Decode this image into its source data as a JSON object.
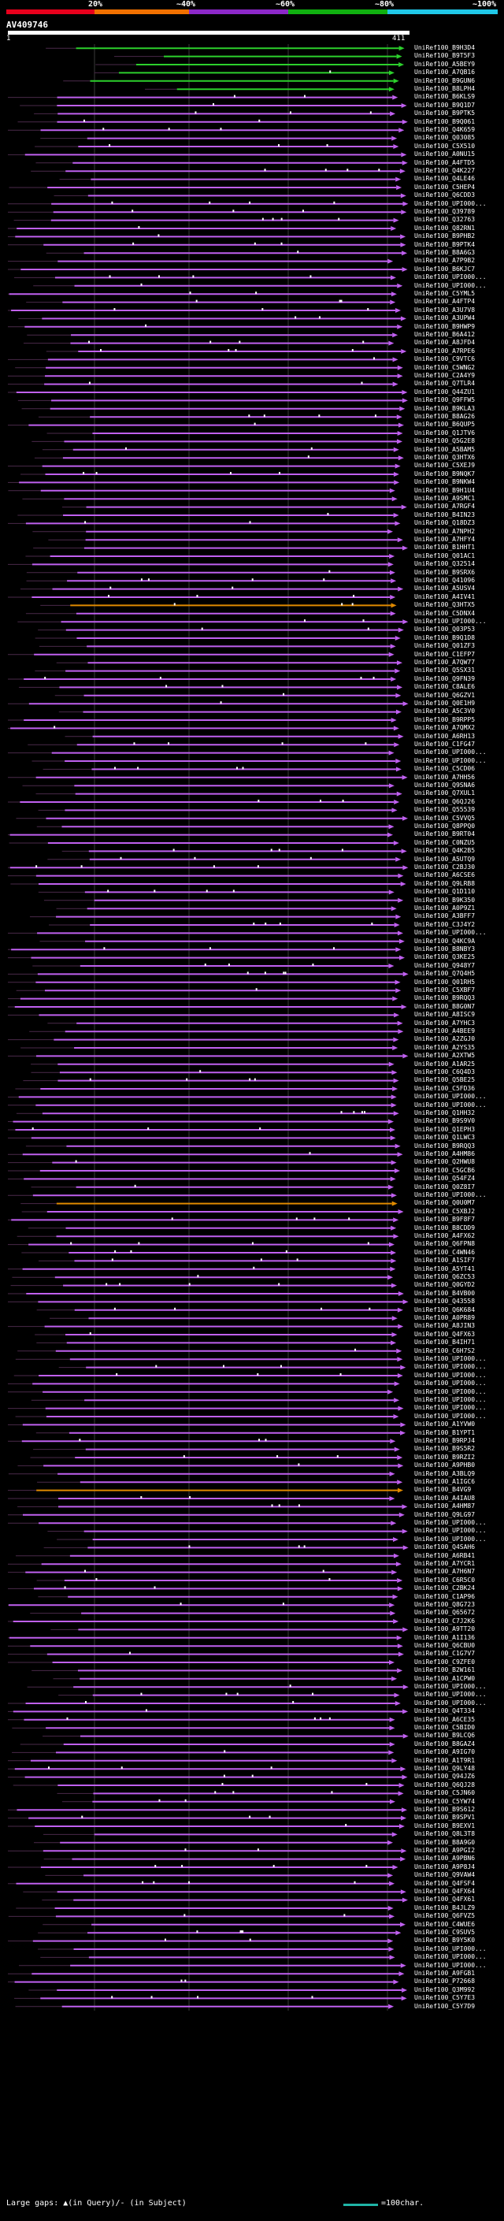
{
  "scale": {
    "labels": [
      "20%",
      "~40%",
      "~60%",
      "~80%",
      "~100%"
    ],
    "colors": [
      "#e8001c",
      "#f07000",
      "#8c28c8",
      "#10b010",
      "#20c8e8"
    ]
  },
  "query": {
    "name": "AV409746",
    "start_tick": "1",
    "end_tick": "411"
  },
  "hit_colors": {
    "low": "#c060f0",
    "mid": "#e08a00",
    "high": "#2cd02c",
    "gap": "#ffffff"
  },
  "hits": [
    {
      "label": "UniRef100_B9H3D4",
      "color": "high"
    },
    {
      "label": "UniRef100_B9T5F3",
      "color": "high"
    },
    {
      "label": "UniRef100_A5BEY9",
      "color": "high"
    },
    {
      "label": "UniRef100_A7QB16",
      "color": "high"
    },
    {
      "label": "UniRef100_B9GUN6",
      "color": "high"
    },
    {
      "label": "UniRef100_B8LPH4",
      "color": "high"
    },
    {
      "label": "UniRef100_B6KLS9",
      "color": "low"
    },
    {
      "label": "UniRef100_B9Q1D7",
      "color": "low"
    },
    {
      "label": "UniRef100_B9PTK5",
      "color": "low"
    },
    {
      "label": "UniRef100_B9Q061",
      "color": "low"
    },
    {
      "label": "UniRef100_Q4K659",
      "color": "low"
    },
    {
      "label": "UniRef100_Q03085",
      "color": "low"
    },
    {
      "label": "UniRef100_C5X510",
      "color": "low"
    },
    {
      "label": "UniRef100_A0NU15",
      "color": "low"
    },
    {
      "label": "UniRef100_A4FTD5",
      "color": "low"
    },
    {
      "label": "UniRef100_Q4K227",
      "color": "low"
    },
    {
      "label": "UniRef100_Q4LE46",
      "color": "low"
    },
    {
      "label": "UniRef100_C5HEP4",
      "color": "low"
    },
    {
      "label": "UniRef100_Q6CDD3",
      "color": "low"
    },
    {
      "label": "UniRef100_UPI000...",
      "color": "low"
    },
    {
      "label": "UniRef100_Q39789",
      "color": "low"
    },
    {
      "label": "UniRef100_Q32763",
      "color": "low"
    },
    {
      "label": "UniRef100_Q82RN1",
      "color": "low"
    },
    {
      "label": "UniRef100_B9PHB2",
      "color": "low"
    },
    {
      "label": "UniRef100_B9PTK4",
      "color": "low"
    },
    {
      "label": "UniRef100_B8A6G3",
      "color": "low"
    },
    {
      "label": "UniRef100_A7P9B2",
      "color": "low"
    },
    {
      "label": "UniRef100_B6KJC7",
      "color": "low"
    },
    {
      "label": "UniRef100_UPI000...",
      "color": "low"
    },
    {
      "label": "UniRef100_UPI000...",
      "color": "low"
    },
    {
      "label": "UniRef100_C5YML5",
      "color": "low"
    },
    {
      "label": "UniRef100_A4FTP4",
      "color": "low"
    },
    {
      "label": "UniRef100_A3U7V8",
      "color": "low"
    },
    {
      "label": "UniRef100_A3UPW4",
      "color": "low"
    },
    {
      "label": "UniRef100_B9HWP9",
      "color": "low"
    },
    {
      "label": "UniRef100_B6A412",
      "color": "low"
    },
    {
      "label": "UniRef100_A8JFD4",
      "color": "low"
    },
    {
      "label": "UniRef100_A7RPE6",
      "color": "low"
    },
    {
      "label": "UniRef100_C9VTC6",
      "color": "low"
    },
    {
      "label": "UniRef100_C5WNG2",
      "color": "low"
    },
    {
      "label": "UniRef100_C2A4Y9",
      "color": "low"
    },
    {
      "label": "UniRef100_Q7TLR4",
      "color": "low"
    },
    {
      "label": "UniRef100_Q44ZU1",
      "color": "low"
    },
    {
      "label": "UniRef100_Q9FFW5",
      "color": "low"
    },
    {
      "label": "UniRef100_B9KLA3",
      "color": "low"
    },
    {
      "label": "UniRef100_B8AG26",
      "color": "low"
    },
    {
      "label": "UniRef100_B6QUP5",
      "color": "low"
    },
    {
      "label": "UniRef100_Q1JTV6",
      "color": "low"
    },
    {
      "label": "UniRef100_Q5G2E8",
      "color": "low"
    },
    {
      "label": "UniRef100_A5BAM5",
      "color": "low"
    },
    {
      "label": "UniRef100_Q3HTX6",
      "color": "low"
    },
    {
      "label": "UniRef100_C5XEJ9",
      "color": "low"
    },
    {
      "label": "UniRef100_B9NQK7",
      "color": "low"
    },
    {
      "label": "UniRef100_B9NKW4",
      "color": "low"
    },
    {
      "label": "UniRef100_B9H1U4",
      "color": "low"
    },
    {
      "label": "UniRef100_A9SMC1",
      "color": "low"
    },
    {
      "label": "UniRef100_A7RGF4",
      "color": "low"
    },
    {
      "label": "UniRef100_B4IN23",
      "color": "low"
    },
    {
      "label": "UniRef100_Q18DZ3",
      "color": "low"
    },
    {
      "label": "UniRef100_A7NPH2",
      "color": "low"
    },
    {
      "label": "UniRef100_A7HFY4",
      "color": "low"
    },
    {
      "label": "UniRef100_B1HHT1",
      "color": "low"
    },
    {
      "label": "UniRef100_Q01AC1",
      "color": "low"
    },
    {
      "label": "UniRef100_Q32514",
      "color": "low"
    },
    {
      "label": "UniRef100_B9SRX6",
      "color": "low"
    },
    {
      "label": "UniRef100_Q41096",
      "color": "low"
    },
    {
      "label": "UniRef100_A5USV4",
      "color": "low"
    },
    {
      "label": "UniRef100_A4IV41",
      "color": "low"
    },
    {
      "label": "UniRef100_Q3HTX5",
      "color": "mid"
    },
    {
      "label": "UniRef100_C5DNX4",
      "color": "low"
    },
    {
      "label": "UniRef100_UPI000...",
      "color": "low"
    },
    {
      "label": "UniRef100_Q03P53",
      "color": "low"
    },
    {
      "label": "UniRef100_B9Q1D8",
      "color": "low"
    },
    {
      "label": "UniRef100_Q01ZF3",
      "color": "low"
    },
    {
      "label": "UniRef100_C1EFP7",
      "color": "low"
    },
    {
      "label": "UniRef100_A7QW77",
      "color": "low"
    },
    {
      "label": "UniRef100_Q5SX31",
      "color": "low"
    },
    {
      "label": "UniRef100_Q9FN39",
      "color": "low"
    },
    {
      "label": "UniRef100_C8ALE6",
      "color": "low"
    },
    {
      "label": "UniRef100_Q6GZV1",
      "color": "low"
    },
    {
      "label": "UniRef100_Q0E1H9",
      "color": "low"
    },
    {
      "label": "UniRef100_A5C3V0",
      "color": "low"
    },
    {
      "label": "UniRef100_B9RPP5",
      "color": "low"
    },
    {
      "label": "UniRef100_A7QMX2",
      "color": "low"
    },
    {
      "label": "UniRef100_A6RH13",
      "color": "low"
    },
    {
      "label": "UniRef100_C1FG47",
      "color": "low"
    },
    {
      "label": "UniRef100_UPI000...",
      "color": "low"
    },
    {
      "label": "UniRef100_UPI000...",
      "color": "low"
    },
    {
      "label": "UniRef100_C5CD06",
      "color": "low"
    },
    {
      "label": "UniRef100_A7HH56",
      "color": "low"
    },
    {
      "label": "UniRef100_Q9SNA6",
      "color": "low"
    },
    {
      "label": "UniRef100_Q7XUL1",
      "color": "low"
    },
    {
      "label": "UniRef100_Q6QJ26",
      "color": "low"
    },
    {
      "label": "UniRef100_Q55539",
      "color": "low"
    },
    {
      "label": "UniRef100_C5VVQ5",
      "color": "low"
    },
    {
      "label": "UniRef100_Q8PPQ0",
      "color": "low"
    },
    {
      "label": "UniRef100_B9RT04",
      "color": "low"
    },
    {
      "label": "UniRef100_C0NZU5",
      "color": "low"
    },
    {
      "label": "UniRef100_Q4K2B5",
      "color": "low"
    },
    {
      "label": "UniRef100_A5UTQ9",
      "color": "low"
    },
    {
      "label": "UniRef100_C2BJ30",
      "color": "low"
    },
    {
      "label": "UniRef100_A6CSE6",
      "color": "low"
    },
    {
      "label": "UniRef100_Q9LRB8",
      "color": "low"
    },
    {
      "label": "UniRef100_Q1D110",
      "color": "low"
    },
    {
      "label": "UniRef100_B9K350",
      "color": "low"
    },
    {
      "label": "UniRef100_A0P9Z1",
      "color": "low"
    },
    {
      "label": "UniRef100_A3BFF7",
      "color": "low"
    },
    {
      "label": "UniRef100_C3J4Y2",
      "color": "low"
    },
    {
      "label": "UniRef100_UPI000...",
      "color": "low"
    },
    {
      "label": "UniRef100_Q4KC9A",
      "color": "low"
    },
    {
      "label": "UniRef100_B8NBY3",
      "color": "low"
    },
    {
      "label": "UniRef100_Q3KE25",
      "color": "low"
    },
    {
      "label": "UniRef100_Q948Y7",
      "color": "low"
    },
    {
      "label": "UniRef100_Q7Q4H5",
      "color": "low"
    },
    {
      "label": "UniRef100_Q01RH5",
      "color": "low"
    },
    {
      "label": "UniRef100_C5XBF7",
      "color": "low"
    },
    {
      "label": "UniRef100_B9RQQ3",
      "color": "low"
    },
    {
      "label": "UniRef100_B8G0N7",
      "color": "low"
    },
    {
      "label": "UniRef100_A8ISC9",
      "color": "low"
    },
    {
      "label": "UniRef100_A7YHC3",
      "color": "low"
    },
    {
      "label": "UniRef100_A4BEE9",
      "color": "low"
    },
    {
      "label": "UniRef100_A2ZGJ0",
      "color": "low"
    },
    {
      "label": "UniRef100_A2YS35",
      "color": "low"
    },
    {
      "label": "UniRef100_A2XTW5",
      "color": "low"
    },
    {
      "label": "UniRef100_A1AR25",
      "color": "low"
    },
    {
      "label": "UniRef100_C6Q4D3",
      "color": "low"
    },
    {
      "label": "UniRef100_Q5BE25",
      "color": "low"
    },
    {
      "label": "UniRef100_C5FD36",
      "color": "low"
    },
    {
      "label": "UniRef100_UPI000...",
      "color": "low"
    },
    {
      "label": "UniRef100_UPI000...",
      "color": "low"
    },
    {
      "label": "UniRef100_Q1HH32",
      "color": "low"
    },
    {
      "label": "UniRef100_B9S9V0",
      "color": "low"
    },
    {
      "label": "UniRef100_Q1EPH3",
      "color": "low"
    },
    {
      "label": "UniRef100_Q1LWC3",
      "color": "low"
    },
    {
      "label": "UniRef100_B9RQQ3",
      "color": "low"
    },
    {
      "label": "UniRef100_A4HM86",
      "color": "low"
    },
    {
      "label": "UniRef100_Q2HWU8",
      "color": "low"
    },
    {
      "label": "UniRef100_C5GCB6",
      "color": "low"
    },
    {
      "label": "UniRef100_Q54FZ4",
      "color": "low"
    },
    {
      "label": "UniRef100_Q0Z8I7",
      "color": "low"
    },
    {
      "label": "UniRef100_UPI000...",
      "color": "low"
    },
    {
      "label": "UniRef100_Q0U0M7",
      "color": "mid"
    },
    {
      "label": "UniRef100_C5XBJ2",
      "color": "low"
    },
    {
      "label": "UniRef100_B9F8F7",
      "color": "low"
    },
    {
      "label": "UniRef100_B8CDD9",
      "color": "low"
    },
    {
      "label": "UniRef100_A4FX62",
      "color": "low"
    },
    {
      "label": "UniRef100_Q6FPN8",
      "color": "low"
    },
    {
      "label": "UniRef100_C4WN46",
      "color": "low"
    },
    {
      "label": "UniRef100_A1SIF7",
      "color": "low"
    },
    {
      "label": "UniRef100_A5YT41",
      "color": "low"
    },
    {
      "label": "UniRef100_Q6ZC53",
      "color": "low"
    },
    {
      "label": "UniRef100_Q0GYD2",
      "color": "low"
    },
    {
      "label": "UniRef100_B4VB00",
      "color": "low"
    },
    {
      "label": "UniRef100_Q43558",
      "color": "low"
    },
    {
      "label": "UniRef100_Q6K684",
      "color": "low"
    },
    {
      "label": "UniRef100_A0PR89",
      "color": "low"
    },
    {
      "label": "UniRef100_A8JIN3",
      "color": "low"
    },
    {
      "label": "UniRef100_Q4FX63",
      "color": "low"
    },
    {
      "label": "UniRef100_B4IH71",
      "color": "low"
    },
    {
      "label": "UniRef100_C6H7S2",
      "color": "low"
    },
    {
      "label": "UniRef100_UPI000...",
      "color": "low"
    },
    {
      "label": "UniRef100_UPI000...",
      "color": "low"
    },
    {
      "label": "UniRef100_UPI000...",
      "color": "low"
    },
    {
      "label": "UniRef100_UPI000...",
      "color": "low"
    },
    {
      "label": "UniRef100_UPI000...",
      "color": "low"
    },
    {
      "label": "UniRef100_UPI000...",
      "color": "low"
    },
    {
      "label": "UniRef100_UPI000...",
      "color": "low"
    },
    {
      "label": "UniRef100_UPI000...",
      "color": "low"
    },
    {
      "label": "UniRef100_A1YVW0",
      "color": "low"
    },
    {
      "label": "UniRef100_B1YPT1",
      "color": "low"
    },
    {
      "label": "UniRef100_B9RPJ4",
      "color": "low"
    },
    {
      "label": "UniRef100_B9S5R2",
      "color": "low"
    },
    {
      "label": "UniRef100_B9RZI2",
      "color": "low"
    },
    {
      "label": "UniRef100_A9PHB0",
      "color": "low"
    },
    {
      "label": "UniRef100_A3BLQ9",
      "color": "low"
    },
    {
      "label": "UniRef100_A1IGC6",
      "color": "low"
    },
    {
      "label": "UniRef100_B4VG9",
      "color": "mid"
    },
    {
      "label": "UniRef100_A4IAU8",
      "color": "low"
    },
    {
      "label": "UniRef100_A4HM87",
      "color": "low"
    },
    {
      "label": "UniRef100_Q9LG97",
      "color": "low"
    },
    {
      "label": "UniRef100_UPI000...",
      "color": "low"
    },
    {
      "label": "UniRef100_UPI000...",
      "color": "low"
    },
    {
      "label": "UniRef100_UPI000...",
      "color": "low"
    },
    {
      "label": "UniRef100_Q4SAH6",
      "color": "low"
    },
    {
      "label": "UniRef100_A6RB41",
      "color": "low"
    },
    {
      "label": "UniRef100_A7YCR1",
      "color": "low"
    },
    {
      "label": "UniRef100_A7H6N7",
      "color": "low"
    },
    {
      "label": "UniRef100_C6R5C0",
      "color": "low"
    },
    {
      "label": "UniRef100_C2BK24",
      "color": "low"
    },
    {
      "label": "UniRef100_C1AP96",
      "color": "low"
    },
    {
      "label": "UniRef100_Q8G723",
      "color": "low"
    },
    {
      "label": "UniRef100_Q65672",
      "color": "low"
    },
    {
      "label": "UniRef100_C7J2K6",
      "color": "low"
    },
    {
      "label": "UniRef100_A9TT20",
      "color": "low"
    },
    {
      "label": "UniRef100_A1I136",
      "color": "low"
    },
    {
      "label": "UniRef100_Q6CBU0",
      "color": "low"
    },
    {
      "label": "UniRef100_C1G7V7",
      "color": "low"
    },
    {
      "label": "UniRef100_C9ZFE0",
      "color": "low"
    },
    {
      "label": "UniRef100_B2W161",
      "color": "low"
    },
    {
      "label": "UniRef100_A1CPW0",
      "color": "low"
    },
    {
      "label": "UniRef100_UPI000...",
      "color": "low"
    },
    {
      "label": "UniRef100_UPI000...",
      "color": "low"
    },
    {
      "label": "UniRef100_UPI000...",
      "color": "low"
    },
    {
      "label": "UniRef100_Q4T334",
      "color": "low"
    },
    {
      "label": "UniRef100_A6CE35",
      "color": "low"
    },
    {
      "label": "UniRef100_C5BID0",
      "color": "low"
    },
    {
      "label": "UniRef100_B9LCQ6",
      "color": "low"
    },
    {
      "label": "UniRef100_B8GAZ4",
      "color": "low"
    },
    {
      "label": "UniRef100_A9IG70",
      "color": "low"
    },
    {
      "label": "UniRef100_A1T9R1",
      "color": "low"
    },
    {
      "label": "UniRef100_Q9LY48",
      "color": "low"
    },
    {
      "label": "UniRef100_Q94JZ6",
      "color": "low"
    },
    {
      "label": "UniRef100_Q6QJ28",
      "color": "low"
    },
    {
      "label": "UniRef100_C5JN60",
      "color": "low"
    },
    {
      "label": "UniRef100_C5YW74",
      "color": "low"
    },
    {
      "label": "UniRef100_B9S612",
      "color": "low"
    },
    {
      "label": "UniRef100_B9SPV1",
      "color": "low"
    },
    {
      "label": "UniRef100_B9EXV1",
      "color": "low"
    },
    {
      "label": "UniRef100_Q8L3T8",
      "color": "low"
    },
    {
      "label": "UniRef100_B8A9G0",
      "color": "low"
    },
    {
      "label": "UniRef100_A9PGI2",
      "color": "low"
    },
    {
      "label": "UniRef100_A9PBN6",
      "color": "low"
    },
    {
      "label": "UniRef100_A9P8J4",
      "color": "low"
    },
    {
      "label": "UniRef100_Q9VAW4",
      "color": "low"
    },
    {
      "label": "UniRef100_Q4FSF4",
      "color": "low"
    },
    {
      "label": "UniRef100_Q4FX64",
      "color": "low"
    },
    {
      "label": "UniRef100_Q4FX61",
      "color": "low"
    },
    {
      "label": "UniRef100_B4JLZ9",
      "color": "low"
    },
    {
      "label": "UniRef100_Q6FVZ5",
      "color": "low"
    },
    {
      "label": "UniRef100_C4WUE6",
      "color": "low"
    },
    {
      "label": "UniRef100_C9SUV5",
      "color": "low"
    },
    {
      "label": "UniRef100_B9Y5K0",
      "color": "low"
    },
    {
      "label": "UniRef100_UPI000...",
      "color": "low"
    },
    {
      "label": "UniRef100_UPI000...",
      "color": "low"
    },
    {
      "label": "UniRef100_UPI000...",
      "color": "low"
    },
    {
      "label": "UniRef100_A9FGB1",
      "color": "low"
    },
    {
      "label": "UniRef100_P72668",
      "color": "low"
    },
    {
      "label": "UniRef100_Q3M992",
      "color": "low"
    },
    {
      "label": "UniRef100_C5Y7E3",
      "color": "low"
    },
    {
      "label": "UniRef100_C5Y7D9",
      "color": "low"
    }
  ],
  "footer": {
    "gap_legend": "Large gaps: ▲(in Query)/- (in Subject)",
    "scale_label": "=100char."
  }
}
